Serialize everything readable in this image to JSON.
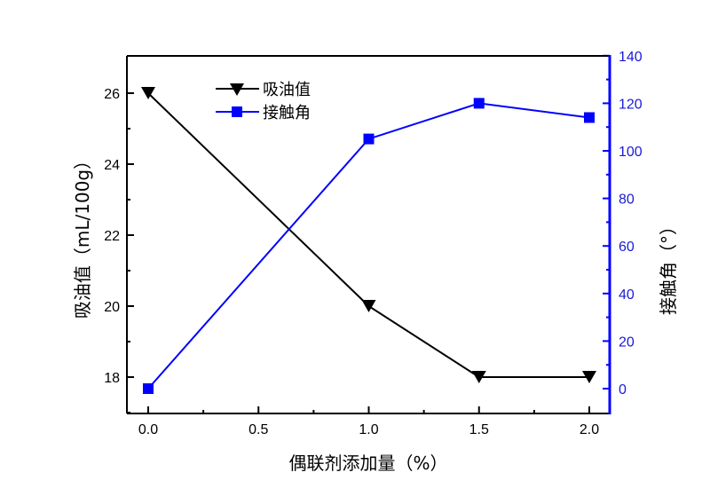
{
  "chart_data": {
    "type": "line",
    "title": "",
    "xlabel": "偶联剂添加量（%）",
    "ylabel_left": "吸油值（mL/100g）",
    "ylabel_right": "接触角（°）",
    "x": [
      0.0,
      1.0,
      1.5,
      2.0
    ],
    "x_ticks": [
      "0.0",
      "0.5",
      "1.0",
      "1.5",
      "2.0"
    ],
    "xlim": [
      -0.1,
      2.09
    ],
    "y_left_ticks": [
      "18",
      "20",
      "22",
      "24",
      "26"
    ],
    "y_left_lim": [
      17,
      27
    ],
    "y_right_ticks": [
      "0",
      "20",
      "40",
      "60",
      "80",
      "100",
      "120",
      "140"
    ],
    "y_right_lim": [
      -10,
      140
    ],
    "grid": false,
    "legend_position": "upper-left-inside",
    "series": [
      {
        "name": "吸油值",
        "axis": "left",
        "marker": "down-triangle",
        "color": "#000000",
        "values": [
          26,
          20,
          18,
          18
        ]
      },
      {
        "name": "接触角",
        "axis": "right",
        "marker": "square",
        "color": "#0000ff",
        "values": [
          0,
          105,
          120,
          114
        ]
      }
    ]
  },
  "colors": {
    "left_axis": "#000000",
    "right_axis": "#1a1ad6",
    "series_blue": "#0000ff"
  }
}
